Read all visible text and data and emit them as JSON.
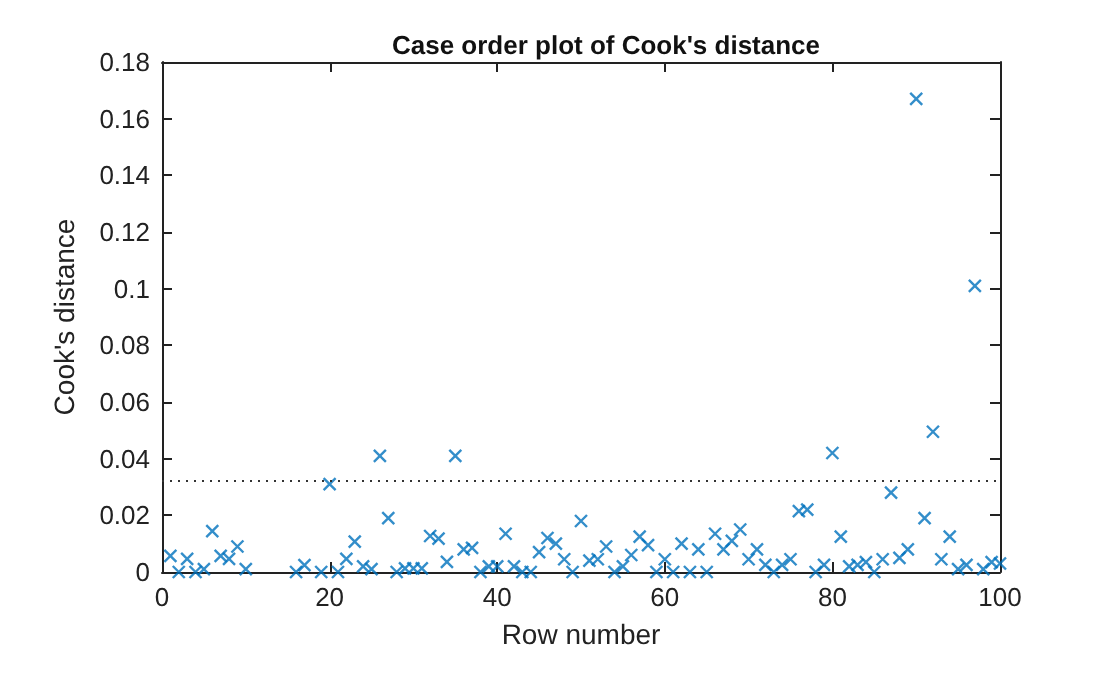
{
  "chart_data": {
    "type": "scatter",
    "title": "Case order plot of Cook's distance",
    "xlabel": "Row number",
    "ylabel": "Cook's distance",
    "xlim": [
      0,
      100
    ],
    "xticks": [
      0,
      20,
      40,
      60,
      80,
      100
    ],
    "ylim": [
      0,
      0.18
    ],
    "yticks": [
      0,
      0.02,
      0.04,
      0.06,
      0.08,
      0.1,
      0.12,
      0.14,
      0.16,
      0.18
    ],
    "grid": false,
    "marker": "cross",
    "series": [
      {
        "color": "#0072bd",
        "x": [
          1,
          2,
          3,
          4,
          5,
          6,
          7,
          8,
          9,
          10,
          16,
          17,
          19,
          20,
          21,
          22,
          23,
          24,
          25,
          26,
          27,
          28,
          29,
          30,
          31,
          32,
          33,
          34,
          35,
          36,
          37,
          38,
          39,
          40,
          41,
          42,
          43,
          44,
          45,
          46,
          47,
          48,
          49,
          50,
          51,
          52,
          53,
          54,
          55,
          56,
          57,
          58,
          59,
          60,
          61,
          62,
          63,
          64,
          65,
          66,
          67,
          68,
          69,
          70,
          71,
          72,
          73,
          74,
          75,
          76,
          77,
          78,
          79,
          80,
          81,
          82,
          83,
          84,
          85,
          86,
          87,
          88,
          89,
          90,
          91,
          92,
          93,
          94,
          95,
          96,
          97,
          98,
          99,
          100
        ],
        "values": [
          0.0057,
          0,
          0.0046,
          0,
          0.001,
          0.0144,
          0.0057,
          0.0046,
          0.009,
          0.001,
          0,
          0.0024,
          0,
          0.031,
          0,
          0.0046,
          0.0107,
          0.002,
          0.001,
          0.041,
          0.019,
          0,
          0.0013,
          0.0013,
          0.0013,
          0.0127,
          0.0118,
          0.0036,
          0.041,
          0.008,
          0.0085,
          0,
          0.002,
          0.002,
          0.0135,
          0.002,
          0,
          0,
          0.007,
          0.012,
          0.01,
          0.0045,
          0,
          0.018,
          0.004,
          0.0045,
          0.009,
          0,
          0.002,
          0.006,
          0.0125,
          0.0095,
          0,
          0.0045,
          0,
          0.01,
          0,
          0.008,
          0,
          0.0135,
          0.008,
          0.011,
          0.015,
          0.0045,
          0.008,
          0.0025,
          0,
          0.0025,
          0.0045,
          0.0215,
          0.022,
          0,
          0.0025,
          0.042,
          0.0125,
          0.002,
          0.0025,
          0.0035,
          0,
          0.0045,
          0.028,
          0.005,
          0.008,
          0.167,
          0.019,
          0.0495,
          0.0045,
          0.0125,
          0.001,
          0.0025,
          0.101,
          0.001,
          0.0035,
          0.003
        ]
      }
    ],
    "ref_lines": [
      {
        "axis": "y",
        "value": 0.032,
        "color": "#333333",
        "line_style": "dotted"
      }
    ]
  }
}
